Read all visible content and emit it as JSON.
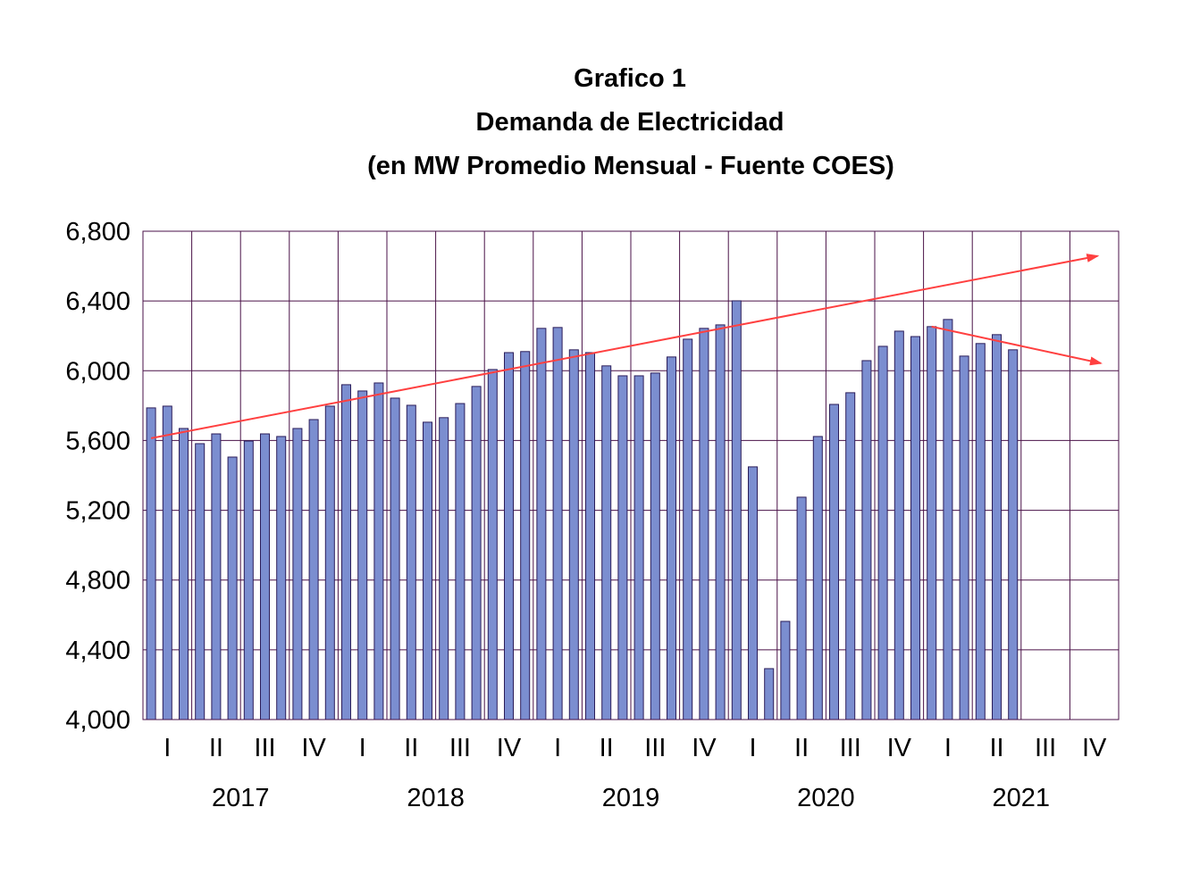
{
  "chart_data": {
    "type": "bar",
    "title": [
      "Grafico 1",
      "Demanda de Electricidad",
      "(en MW Promedio Mensual - Fuente COES)"
    ],
    "xlabel": "",
    "ylabel": "",
    "ylim": [
      4000,
      6800
    ],
    "yticks": [
      "4,000",
      "4,400",
      "4,800",
      "5,200",
      "5,600",
      "6,000",
      "6,400",
      "6,800"
    ],
    "ytick_values": [
      4000,
      4400,
      4800,
      5200,
      5600,
      6000,
      6400,
      6800
    ],
    "quarters": [
      "I",
      "II",
      "III",
      "IV"
    ],
    "years": [
      "2017",
      "2018",
      "2019",
      "2020",
      "2021"
    ],
    "grid": true,
    "months_total": 60,
    "values": [
      5787,
      5797,
      5669,
      5582,
      5638,
      5505,
      5597,
      5638,
      5623,
      5669,
      5720,
      5797,
      5920,
      5884,
      5930,
      5843,
      5802,
      5705,
      5731,
      5812,
      5910,
      6007,
      6104,
      6110,
      6243,
      6248,
      6120,
      6104,
      6028,
      5971,
      5971,
      5987,
      6079,
      6181,
      6243,
      6263,
      6401,
      5449,
      4292,
      4563,
      5275,
      5623,
      5807,
      5874,
      6058,
      6140,
      6227,
      6196,
      6253,
      6294,
      6084,
      6156,
      6207,
      6120
    ],
    "trend_lines": [
      {
        "from": [
          0.5,
          5613
        ],
        "to": [
          58.7,
          6658
        ],
        "color": "#ff4040"
      },
      {
        "from": [
          48.5,
          6253
        ],
        "to": [
          58.9,
          6043
        ],
        "color": "#ff4040"
      }
    ],
    "colors": {
      "bar": "#7b8ed0",
      "bar_edge": "#2b1d5a",
      "grid": "#4a1248"
    }
  }
}
